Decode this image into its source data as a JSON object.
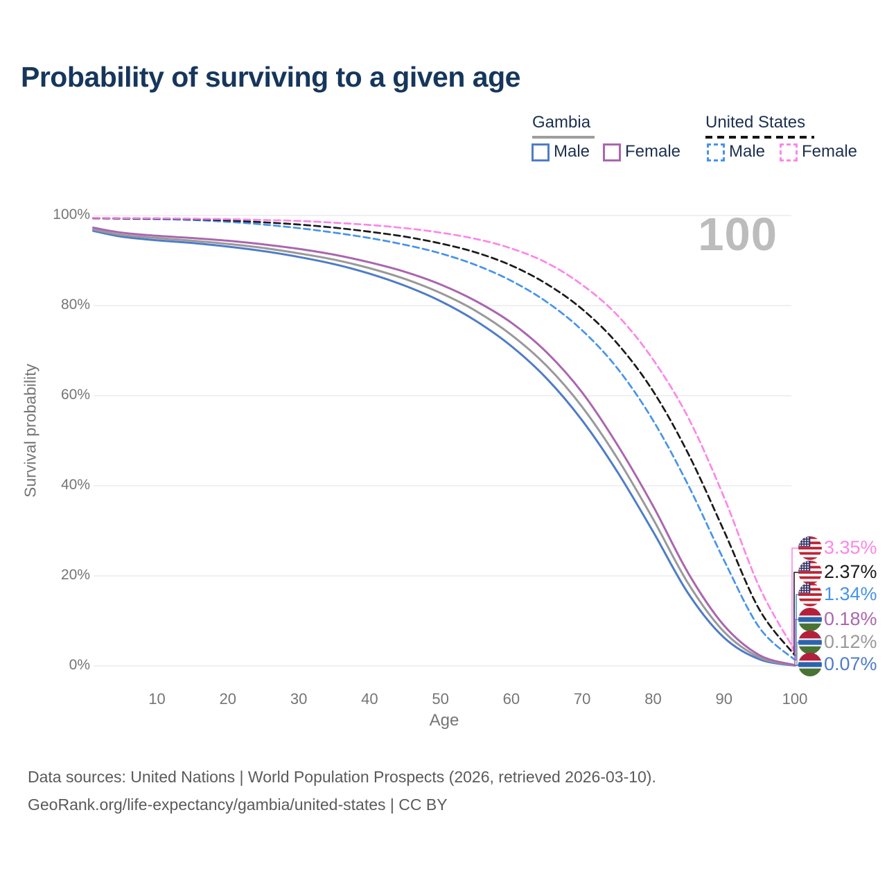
{
  "title": "Probability of surviving to a given age",
  "watermark": "100",
  "legend": {
    "gambia": {
      "label": "Gambia",
      "male": "Male",
      "female": "Female",
      "male_color": "#4f7cc7",
      "female_color": "#aa66ae",
      "line_color": "#9e9e9e",
      "style": "solid"
    },
    "united_states": {
      "label": "United States",
      "male": "Male",
      "female": "Female",
      "male_color": "#4793eb",
      "female_color": "#fb87e6",
      "line_color": "#1a1a1a",
      "style": "dashed"
    }
  },
  "axes": {
    "x_title": "Age",
    "y_title": "Survival probability",
    "x_tick_labels": [
      "10",
      "20",
      "30",
      "40",
      "50",
      "60",
      "70",
      "80",
      "90",
      "100"
    ],
    "y_tick_labels": [
      "0%",
      "20%",
      "40%",
      "60%",
      "80%",
      "100%"
    ]
  },
  "footer": {
    "line1": "Data sources: United Nations | World Population Prospects (2026, retrieved 2026-03-10).",
    "line2": "GeoRank.org/life-expectancy/gambia/united-states | CC BY"
  },
  "colors": {
    "title": "#16365c",
    "grid": "#ececec",
    "tick_text": "#757575",
    "watermark": "#bcbcbc"
  },
  "chart_data": {
    "type": "line",
    "title": "Probability of surviving to a given age",
    "xlabel": "Age",
    "ylabel": "Survival probability",
    "xlim": [
      1,
      100
    ],
    "ylim": [
      0,
      100
    ],
    "x_ticks": [
      10,
      20,
      30,
      40,
      50,
      60,
      70,
      80,
      90,
      100
    ],
    "y_ticks": [
      0,
      20,
      40,
      60,
      80,
      100
    ],
    "grid": "horizontal",
    "highlight_age": 100,
    "legend_position": "top-right",
    "ages": [
      1,
      5,
      10,
      15,
      20,
      25,
      30,
      35,
      40,
      45,
      50,
      55,
      60,
      65,
      70,
      75,
      80,
      85,
      90,
      95,
      100
    ],
    "series": [
      {
        "name": "Gambia Male",
        "country": "Gambia",
        "sex": "Male",
        "style": "solid",
        "color": "#4f7cc7",
        "flag": "gm",
        "end_label": "0.07%",
        "end_value": 0.07,
        "values": [
          96.6,
          95.3,
          94.5,
          93.9,
          93.1,
          92.1,
          90.8,
          89.2,
          87.1,
          84.4,
          81.0,
          76.6,
          71.0,
          63.8,
          54.5,
          43.0,
          29.8,
          16.0,
          6.3,
          1.5,
          0.07
        ]
      },
      {
        "name": "Gambia Both sexes",
        "country": "Gambia",
        "sex": "Both",
        "style": "solid",
        "color": "#999999",
        "flag": "gm",
        "end_label": "0.12%",
        "end_value": 0.12,
        "values": [
          96.9,
          95.7,
          95.0,
          94.4,
          93.7,
          92.8,
          91.6,
          90.2,
          88.3,
          85.9,
          82.8,
          78.8,
          73.5,
          66.6,
          57.5,
          46.0,
          32.6,
          18.2,
          7.6,
          1.9,
          0.12
        ]
      },
      {
        "name": "Gambia Female",
        "country": "Gambia",
        "sex": "Female",
        "style": "solid",
        "color": "#aa66ae",
        "flag": "gm",
        "end_label": "0.18%",
        "end_value": 0.18,
        "values": [
          97.3,
          96.2,
          95.5,
          95.0,
          94.4,
          93.6,
          92.6,
          91.3,
          89.6,
          87.5,
          84.7,
          81.0,
          76.2,
          69.6,
          60.7,
          49.0,
          35.5,
          20.5,
          9.0,
          2.4,
          0.18
        ]
      },
      {
        "name": "United States Male",
        "country": "United States",
        "sex": "Male",
        "style": "dashed",
        "color": "#4793eb",
        "flag": "us",
        "end_label": "1.34%",
        "end_value": 1.34,
        "values": [
          99.4,
          99.3,
          99.2,
          99.0,
          98.6,
          98.0,
          97.2,
          96.2,
          95.0,
          93.5,
          91.6,
          89.0,
          85.5,
          80.8,
          74.5,
          66.0,
          54.5,
          40.0,
          23.5,
          8.5,
          1.34
        ]
      },
      {
        "name": "United States Both sexes",
        "country": "United States",
        "sex": "Both",
        "style": "dashed",
        "color": "#1a1a1a",
        "flag": "us",
        "end_label": "2.37%",
        "end_value": 2.37,
        "values": [
          99.4,
          99.35,
          99.3,
          99.2,
          98.9,
          98.5,
          98.0,
          97.3,
          96.4,
          95.3,
          93.8,
          91.8,
          88.9,
          84.8,
          79.2,
          71.5,
          61.0,
          47.0,
          30.0,
          12.5,
          2.37
        ]
      },
      {
        "name": "United States Female",
        "country": "United States",
        "sex": "Female",
        "style": "dashed",
        "color": "#fb87e6",
        "flag": "us",
        "end_label": "3.35%",
        "end_value": 3.35,
        "values": [
          99.5,
          99.45,
          99.4,
          99.3,
          99.2,
          99.0,
          98.8,
          98.4,
          97.9,
          97.2,
          96.2,
          94.8,
          92.7,
          89.5,
          84.6,
          77.8,
          68.0,
          55.0,
          37.5,
          17.5,
          3.35
        ]
      }
    ]
  }
}
